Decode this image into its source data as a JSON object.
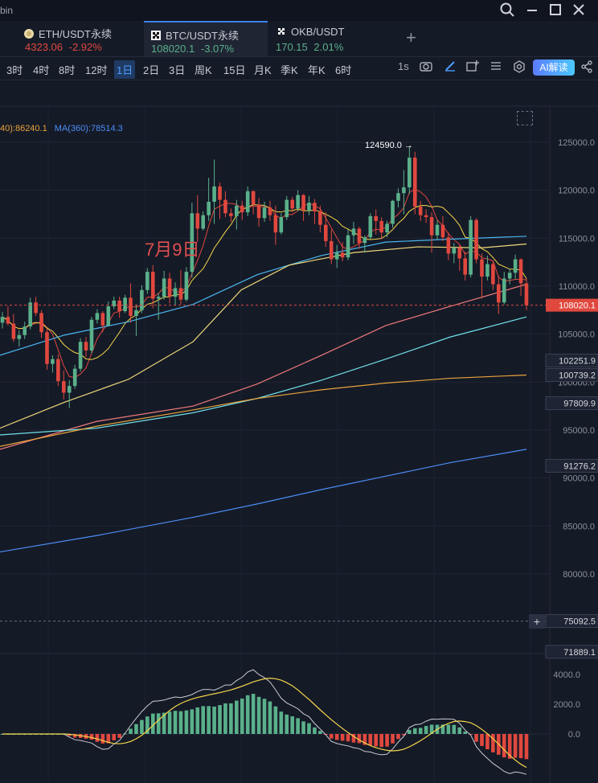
{
  "window": {
    "app_name_partial": "bin",
    "icons": [
      "search-icon",
      "minimize-icon",
      "maximize-icon",
      "close-icon"
    ]
  },
  "tabs": [
    {
      "title": "ETH/USDT永续",
      "price": "4323.06",
      "change": "-2.92%",
      "direction": "down",
      "icon": "eth-coin-icon"
    },
    {
      "title": "BTC/USDT永续",
      "price": "108020.1",
      "change": "-3.07%",
      "direction": "up",
      "icon": "okx-logo-icon",
      "active": true
    },
    {
      "title": "OKB/USDT",
      "price": "170.15",
      "change": "2.01%",
      "direction": "up",
      "icon": "okx-logo-icon"
    }
  ],
  "add_tab_label": "+",
  "timeframes": [
    "3时",
    "4时",
    "8时",
    "12时",
    "1日",
    "2日",
    "3日",
    "周K",
    "15日",
    "月K",
    "季K",
    "年K",
    "6时"
  ],
  "active_timeframe": "1日",
  "toolbar_right": {
    "interval": "1s",
    "ai_label": "AI解读"
  },
  "ma_legend": [
    {
      "text": "40):86240.1",
      "color": "#e8a33c"
    },
    {
      "text": "MA(360):78514.3",
      "color": "#4c8ef5"
    }
  ],
  "annotation": "7月9日",
  "peak_label": "124590.0 →",
  "price_axis": {
    "ticks": [
      "125000.0",
      "120000.0",
      "115000.0",
      "110000.0",
      "105000.0",
      "100000.0",
      "95000.0",
      "90000.0",
      "85000.0",
      "80000.0"
    ],
    "tags": [
      {
        "text": "108020.1",
        "bg": "#e0483e",
        "color": "#ffffff"
      },
      {
        "text": "102251.9",
        "bg": "#1e2433",
        "color": "#d8dbe2"
      },
      {
        "text": "100739.2",
        "bg": "#1e2433",
        "color": "#d8dbe2"
      },
      {
        "text": "97809.9",
        "bg": "#1e2433",
        "color": "#d8dbe2"
      },
      {
        "text": "91276.2",
        "bg": "#1e2433",
        "color": "#d8dbe2"
      },
      {
        "text": "75092.5",
        "bg": "#1e2433",
        "color": "#d8dbe2"
      },
      {
        "text": "71889.1",
        "bg": "#1e2433",
        "color": "#d8dbe2"
      }
    ]
  },
  "macd_axis": {
    "ticks": [
      "4000.0",
      "2000.0",
      "0.0"
    ]
  },
  "colors": {
    "up": "#5ab08a",
    "down": "#e0483e",
    "accent": "#3b82f6"
  },
  "chart_data": {
    "type": "candlestick",
    "instrument": "BTC/USDT永续",
    "timeframe": "1日",
    "ylim": [
      75000,
      127000
    ],
    "last_price": 108020.1,
    "peak": 124590.0,
    "candles": [
      [
        106200,
        107300,
        105600,
        106800
      ],
      [
        106800,
        107900,
        105900,
        106100
      ],
      [
        106100,
        107100,
        104200,
        104500
      ],
      [
        104500,
        105400,
        103700,
        104900
      ],
      [
        104900,
        106300,
        104500,
        105800
      ],
      [
        105800,
        108800,
        105500,
        108300
      ],
      [
        108300,
        108900,
        106900,
        107200
      ],
      [
        107200,
        107500,
        104600,
        105200
      ],
      [
        105200,
        105600,
        101300,
        101900
      ],
      [
        101900,
        102800,
        101000,
        102400
      ],
      [
        102400,
        102900,
        99600,
        100100
      ],
      [
        100100,
        101200,
        98200,
        98900
      ],
      [
        98900,
        100200,
        97300,
        99600
      ],
      [
        99600,
        101800,
        99300,
        101400
      ],
      [
        101400,
        104600,
        101100,
        104200
      ],
      [
        104200,
        104700,
        102600,
        103300
      ],
      [
        103300,
        106800,
        103000,
        106500
      ],
      [
        106500,
        107600,
        106100,
        107200
      ],
      [
        107200,
        107400,
        105200,
        105900
      ],
      [
        105900,
        108400,
        105800,
        107900
      ],
      [
        107900,
        108900,
        107600,
        108500
      ],
      [
        108500,
        108900,
        106700,
        107400
      ],
      [
        107400,
        109100,
        107200,
        108800
      ],
      [
        108800,
        110300,
        106200,
        106900
      ],
      [
        106900,
        108100,
        104800,
        107500
      ],
      [
        107500,
        110100,
        107200,
        109600
      ],
      [
        109600,
        111900,
        109200,
        111500
      ],
      [
        111500,
        112200,
        107700,
        108700
      ],
      [
        108700,
        109300,
        106500,
        108900
      ],
      [
        108900,
        111600,
        108600,
        110800
      ],
      [
        110800,
        111400,
        108200,
        108900
      ],
      [
        108900,
        110400,
        108000,
        109800
      ],
      [
        109800,
        111700,
        108100,
        108600
      ],
      [
        108600,
        112000,
        108400,
        111500
      ],
      [
        111500,
        118700,
        110900,
        117600
      ],
      [
        117600,
        119500,
        114600,
        116000
      ],
      [
        116000,
        117800,
        115800,
        117400
      ],
      [
        117400,
        121300,
        116800,
        118800
      ],
      [
        118800,
        123200,
        116500,
        120400
      ],
      [
        120400,
        120800,
        117000,
        119000
      ],
      [
        119000,
        119900,
        117200,
        117600
      ],
      [
        117600,
        118100,
        116700,
        117300
      ],
      [
        117300,
        119000,
        115900,
        118400
      ],
      [
        118400,
        118900,
        116900,
        117700
      ],
      [
        117700,
        120400,
        117300,
        119900
      ],
      [
        119900,
        120000,
        117500,
        118500
      ],
      [
        118500,
        119200,
        116200,
        117100
      ],
      [
        117100,
        118800,
        116700,
        118200
      ],
      [
        118200,
        118900,
        116800,
        117400
      ],
      [
        117400,
        118400,
        114300,
        115600
      ],
      [
        115600,
        117600,
        115400,
        117200
      ],
      [
        117200,
        119400,
        116900,
        119000
      ],
      [
        119000,
        119300,
        117700,
        118100
      ],
      [
        118100,
        120000,
        117800,
        119500
      ],
      [
        119500,
        119600,
        116800,
        117900
      ],
      [
        117900,
        119400,
        117400,
        118700
      ],
      [
        118700,
        119100,
        116500,
        117800
      ],
      [
        117800,
        118400,
        115600,
        116400
      ],
      [
        116400,
        117700,
        114100,
        114700
      ],
      [
        114700,
        115900,
        112300,
        112800
      ],
      [
        112800,
        114300,
        111900,
        113500
      ],
      [
        113500,
        114600,
        112600,
        113000
      ],
      [
        113000,
        115900,
        112700,
        115300
      ],
      [
        115300,
        116700,
        114400,
        116000
      ],
      [
        116000,
        116200,
        113900,
        114500
      ],
      [
        114500,
        115300,
        113500,
        115100
      ],
      [
        115100,
        117600,
        114900,
        117300
      ],
      [
        117300,
        118000,
        115400,
        116800
      ],
      [
        116800,
        117200,
        114900,
        115600
      ],
      [
        115600,
        116800,
        115100,
        116500
      ],
      [
        116500,
        119000,
        116100,
        118900
      ],
      [
        118900,
        120200,
        118200,
        119700
      ],
      [
        119700,
        122100,
        117500,
        120300
      ],
      [
        120300,
        124590,
        119600,
        123400
      ],
      [
        123400,
        124000,
        117500,
        118300
      ],
      [
        118300,
        118900,
        116800,
        117400
      ],
      [
        117400,
        118000,
        116600,
        117200
      ],
      [
        117200,
        117700,
        113500,
        115300
      ],
      [
        115300,
        116900,
        114800,
        116400
      ],
      [
        116400,
        117300,
        114700,
        115100
      ],
      [
        115100,
        115600,
        112700,
        113400
      ],
      [
        113400,
        114500,
        112400,
        114000
      ],
      [
        114000,
        114300,
        111600,
        112900
      ],
      [
        112900,
        113600,
        110600,
        111200
      ],
      [
        111200,
        117300,
        110900,
        116900
      ],
      [
        116900,
        117100,
        112400,
        112800
      ],
      [
        112800,
        113400,
        108700,
        111000
      ],
      [
        111000,
        113200,
        110600,
        112300
      ],
      [
        112300,
        112700,
        109600,
        110200
      ],
      [
        110200,
        111100,
        107100,
        108300
      ],
      [
        108300,
        111500,
        108100,
        110800
      ],
      [
        110800,
        111800,
        110200,
        111400
      ],
      [
        111400,
        113300,
        110700,
        112800
      ],
      [
        112800,
        112900,
        109000,
        110300
      ],
      [
        110300,
        110800,
        107500,
        108020.1
      ]
    ],
    "macd_ylim": [
      -2200,
      5000
    ]
  }
}
